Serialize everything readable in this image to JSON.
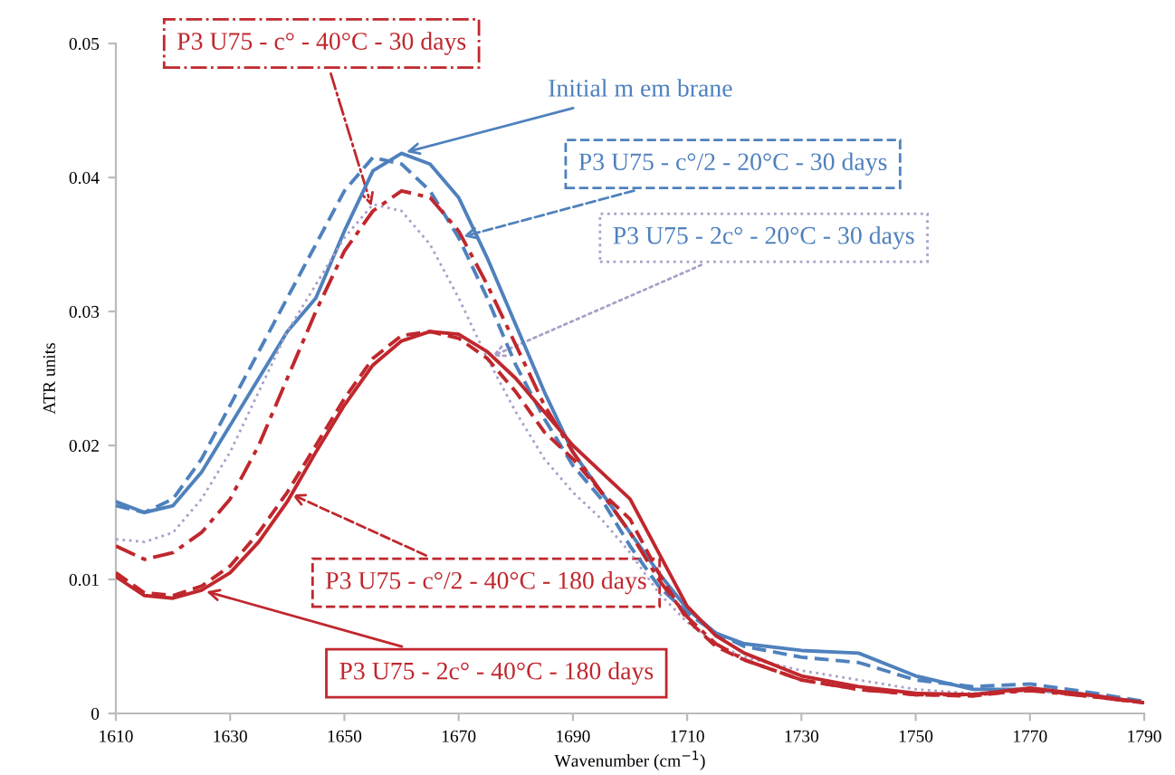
{
  "chart_data": {
    "type": "line",
    "xlabel": "Wavenumber (cm$^{−1}$)",
    "ylabel": "ATR units",
    "xlim": [
      1610,
      1790
    ],
    "ylim": [
      0,
      0.05
    ],
    "xticks": [
      1610,
      1630,
      1650,
      1670,
      1690,
      1710,
      1730,
      1750,
      1770,
      1790
    ],
    "yticks": [
      0,
      0.01,
      0.02,
      0.03,
      0.04,
      0.05
    ],
    "grid": false,
    "legend": false,
    "marker": "none",
    "x": [
      1610,
      1615,
      1620,
      1625,
      1630,
      1635,
      1640,
      1645,
      1650,
      1655,
      1660,
      1665,
      1670,
      1675,
      1680,
      1685,
      1690,
      1695,
      1700,
      1705,
      1710,
      1715,
      1720,
      1730,
      1740,
      1750,
      1760,
      1770,
      1780,
      1790
    ],
    "series": [
      {
        "name": "Initial m em brane",
        "color": "#4f81bd",
        "line_style": "solid",
        "values": [
          0.0158,
          0.015,
          0.0155,
          0.018,
          0.0215,
          0.025,
          0.0285,
          0.031,
          0.036,
          0.0405,
          0.0418,
          0.041,
          0.0385,
          0.034,
          0.029,
          0.024,
          0.0195,
          0.0165,
          0.0135,
          0.0105,
          0.0078,
          0.006,
          0.0052,
          0.0047,
          0.0045,
          0.0028,
          0.0018,
          0.0018,
          0.0014,
          0.0008
        ]
      },
      {
        "name": "P3 U75 - c°/2 - 20°C - 30 days",
        "color": "#4f81bd",
        "line_style": "dashed",
        "values": [
          0.0155,
          0.015,
          0.016,
          0.019,
          0.023,
          0.027,
          0.031,
          0.035,
          0.039,
          0.0415,
          0.041,
          0.039,
          0.0355,
          0.031,
          0.026,
          0.022,
          0.0185,
          0.016,
          0.0125,
          0.0095,
          0.0075,
          0.006,
          0.005,
          0.0042,
          0.0038,
          0.0025,
          0.002,
          0.0022,
          0.0016,
          0.0009
        ]
      },
      {
        "name": "P3 U75 - 2c° - 20°C - 30 days",
        "color": "#a9a0c8",
        "line_style": "dotted",
        "values": [
          0.013,
          0.0128,
          0.0135,
          0.016,
          0.0195,
          0.024,
          0.0285,
          0.032,
          0.0355,
          0.038,
          0.0375,
          0.035,
          0.031,
          0.0265,
          0.0225,
          0.019,
          0.0165,
          0.0145,
          0.012,
          0.009,
          0.0068,
          0.0052,
          0.0042,
          0.0032,
          0.0025,
          0.0018,
          0.0015,
          0.0017,
          0.0013,
          0.0008
        ]
      },
      {
        "name": "P3 U75 - c° - 40°C - 30 days",
        "color": "#c0272d",
        "line_style": "dashdot",
        "values": [
          0.0125,
          0.0115,
          0.012,
          0.0135,
          0.016,
          0.02,
          0.025,
          0.03,
          0.0345,
          0.0375,
          0.039,
          0.0385,
          0.036,
          0.032,
          0.0275,
          0.023,
          0.0195,
          0.0165,
          0.0135,
          0.01,
          0.0072,
          0.0052,
          0.004,
          0.0025,
          0.0018,
          0.0014,
          0.0014,
          0.0017,
          0.0013,
          0.0008
        ]
      },
      {
        "name": "P3 U75 - c°/2 - 40°C - 180 days",
        "color": "#c0272d",
        "line_style": "dashed",
        "values": [
          0.0105,
          0.009,
          0.0088,
          0.0095,
          0.011,
          0.0135,
          0.0165,
          0.02,
          0.0235,
          0.0265,
          0.0282,
          0.0285,
          0.028,
          0.0265,
          0.024,
          0.021,
          0.019,
          0.0165,
          0.0145,
          0.0105,
          0.007,
          0.005,
          0.004,
          0.0025,
          0.0018,
          0.0014,
          0.0013,
          0.0018,
          0.0013,
          0.0008
        ]
      },
      {
        "name": "P3 U75 - 2c° - 40°C - 180 days",
        "color": "#c0272d",
        "line_style": "solid",
        "values": [
          0.0102,
          0.0088,
          0.0086,
          0.0092,
          0.0105,
          0.0128,
          0.0158,
          0.0195,
          0.023,
          0.026,
          0.0278,
          0.0285,
          0.0283,
          0.027,
          0.025,
          0.0225,
          0.02,
          0.018,
          0.016,
          0.012,
          0.008,
          0.0058,
          0.0045,
          0.0028,
          0.002,
          0.0015,
          0.0014,
          0.0019,
          0.0014,
          0.0008
        ]
      }
    ]
  }
}
